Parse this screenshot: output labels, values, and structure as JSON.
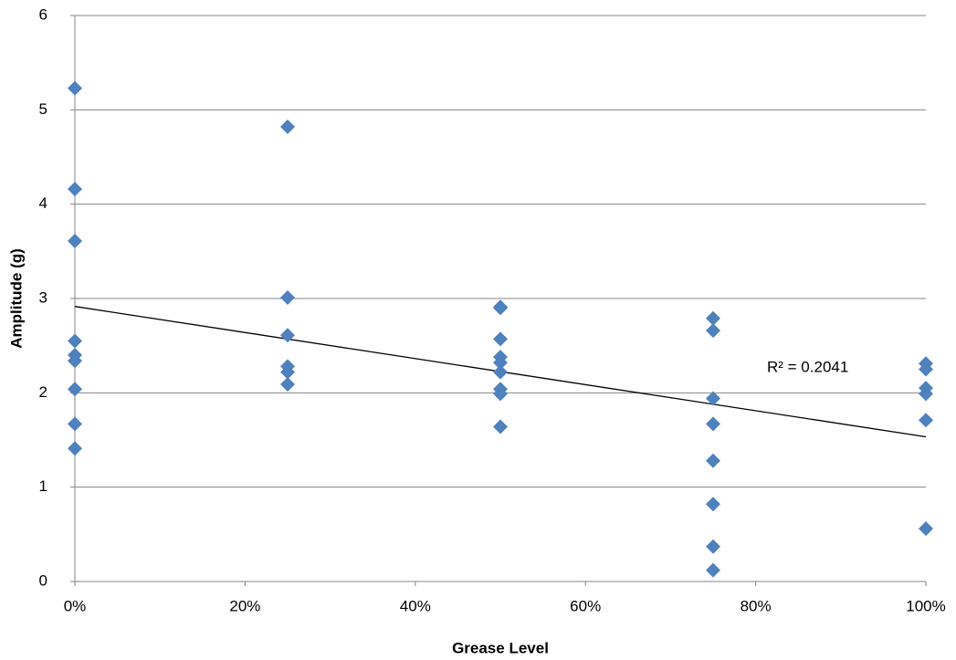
{
  "chart_data": {
    "type": "scatter",
    "x_label": "Grease Level",
    "y_label": "Amplitude (g)",
    "annotation": "R² = 0.2041",
    "trendline": "linear",
    "grid": true,
    "series": [
      {
        "name": "Amplitude",
        "color": "#4f81bd",
        "x": [
          0,
          0,
          0,
          0,
          0,
          0,
          0,
          0,
          0,
          25,
          25,
          25,
          25,
          25,
          25,
          50,
          50,
          50,
          50,
          50,
          50,
          50,
          50,
          50,
          75,
          75,
          75,
          75,
          75,
          75,
          75,
          75,
          100,
          100,
          100,
          100,
          100,
          100
        ],
        "values": [
          5.23,
          4.16,
          3.61,
          2.55,
          2.4,
          2.34,
          2.04,
          1.67,
          1.41,
          4.82,
          3.01,
          2.61,
          2.28,
          2.22,
          2.09,
          2.91,
          2.9,
          2.57,
          2.38,
          2.32,
          2.22,
          2.04,
          1.99,
          1.64,
          2.79,
          2.66,
          1.94,
          1.67,
          1.28,
          0.82,
          0.37,
          0.12,
          2.31,
          2.25,
          2.05,
          1.99,
          1.71,
          0.56
        ]
      }
    ],
    "xlim": [
      0,
      100
    ],
    "xticks": [
      {
        "value": 0,
        "label": "0%"
      },
      {
        "value": 20,
        "label": "20%"
      },
      {
        "value": 40,
        "label": "40%"
      },
      {
        "value": 60,
        "label": "60%"
      },
      {
        "value": 80,
        "label": "80%"
      },
      {
        "value": 100,
        "label": "100%"
      }
    ],
    "ylim": [
      0,
      6
    ],
    "yticks": [
      0,
      1,
      2,
      3,
      4,
      5,
      6
    ]
  }
}
